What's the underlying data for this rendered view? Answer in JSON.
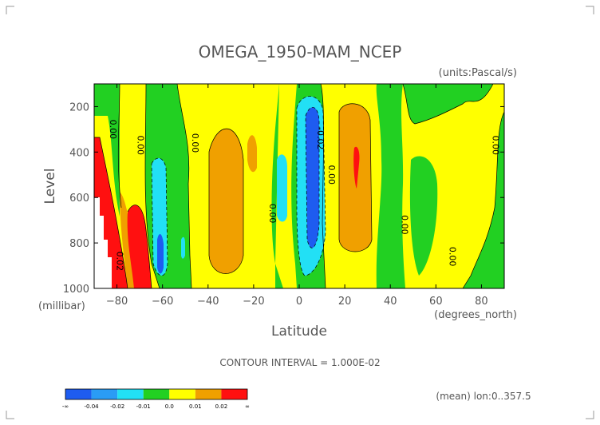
{
  "chart_data": {
    "type": "contour",
    "title": "OMEGA_1950-MAM_NCEP",
    "units": "(units:Pascal/s)",
    "xlabel": "Latitude",
    "xlabel_units": "(degrees_north)",
    "ylabel": "Level",
    "ylabel_units": "(millibar)",
    "xlim": [
      -90,
      90
    ],
    "ylim": [
      1000,
      100
    ],
    "y_reversed": true,
    "x_ticks": [
      -80,
      -60,
      -40,
      -20,
      0,
      20,
      40,
      60,
      80
    ],
    "x_tick_labels": [
      "-80",
      "-60",
      "-40",
      "-20",
      "0",
      "20",
      "40",
      "60",
      "80"
    ],
    "y_ticks": [
      200,
      400,
      600,
      800,
      1000
    ],
    "y_tick_labels": [
      "200",
      "400",
      "600",
      "800",
      "1000"
    ],
    "contour_interval_text": "CONTOUR INTERVAL = 1.000E-02",
    "averaging_text": "(mean) lon:0..357.5",
    "contour_labels": [
      {
        "text": "0.00",
        "lat": -83,
        "lev": 300
      },
      {
        "text": "0.00",
        "lat": -71,
        "lev": 370
      },
      {
        "text": "0.00",
        "lat": -47,
        "lev": 360
      },
      {
        "text": "0.00",
        "lat": -13,
        "lev": 670
      },
      {
        "text": "-0.02",
        "lat": 8,
        "lev": 340
      },
      {
        "text": "0.00",
        "lat": 13,
        "lev": 500
      },
      {
        "text": "0.00",
        "lat": 45,
        "lev": 720
      },
      {
        "text": "0.00",
        "lat": 66,
        "lev": 860
      },
      {
        "text": "0.00",
        "lat": 85,
        "lev": 370
      },
      {
        "text": "0.02",
        "lat": -80,
        "lev": 880
      }
    ],
    "legend": {
      "colors": [
        "#1e5cf0",
        "#2a9cf5",
        "#22e0f5",
        "#22d022",
        "#ffff00",
        "#f0a000",
        "#ff1010"
      ],
      "tick_labels": [
        "-∞",
        "-0.04",
        "-0.02",
        "-0.01",
        "0.0",
        "0.01",
        "0.02",
        "∞"
      ]
    },
    "levels": [
      {
        "value": "-0.02",
        "color": "#1e5cf0"
      },
      {
        "value": "-0.01",
        "color": "#22e0f5"
      },
      {
        "value": "0.00",
        "color": "#22d022"
      },
      {
        "value": "0.01",
        "color": "#ffff00"
      },
      {
        "value": "0.02",
        "color": "#f0a000"
      },
      {
        "value": ">0.02",
        "color": "#ff1010"
      }
    ]
  }
}
